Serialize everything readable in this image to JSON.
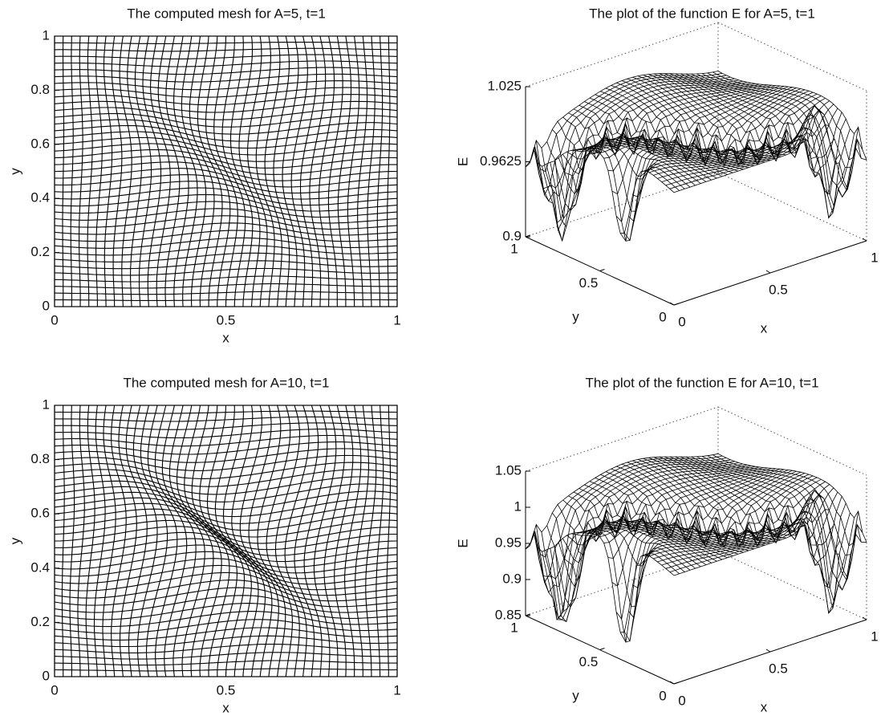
{
  "chart_data": [
    {
      "type": "mesh",
      "title": "The computed mesh for A=5, t=1",
      "xlabel": "x",
      "ylabel": "y",
      "xlim": [
        0,
        1
      ],
      "ylim": [
        0,
        1
      ],
      "xticks": [
        0,
        0.5,
        1
      ],
      "yticks": [
        0,
        0.2,
        0.4,
        0.6,
        0.8,
        1
      ]
    },
    {
      "type": "surface",
      "title": "The plot of the function E for A=5, t=1",
      "xlabel": "x",
      "ylabel": "y",
      "zlabel": "E",
      "xlim": [
        0,
        1
      ],
      "ylim": [
        0,
        1
      ],
      "zlim": [
        0.9,
        1.025
      ],
      "xticks": [
        0,
        0.5,
        1
      ],
      "yticks": [
        0,
        0.5,
        1
      ],
      "zticks": [
        0.9,
        0.9625,
        1.025
      ]
    },
    {
      "type": "mesh",
      "title": "The computed mesh for A=10, t=1",
      "xlabel": "x",
      "ylabel": "y",
      "xlim": [
        0,
        1
      ],
      "ylim": [
        0,
        1
      ],
      "xticks": [
        0,
        0.5,
        1
      ],
      "yticks": [
        0,
        0.2,
        0.4,
        0.6,
        0.8,
        1
      ]
    },
    {
      "type": "surface",
      "title": "The plot of the function E for A=10, t=1",
      "xlabel": "x",
      "ylabel": "y",
      "zlabel": "E",
      "xlim": [
        0,
        1
      ],
      "ylim": [
        0,
        1
      ],
      "zlim": [
        0.85,
        1.05
      ],
      "xticks": [
        0,
        0.5,
        1
      ],
      "yticks": [
        0,
        0.5,
        1
      ],
      "zticks": [
        0.85,
        0.9,
        0.95,
        1,
        1.05
      ]
    }
  ]
}
